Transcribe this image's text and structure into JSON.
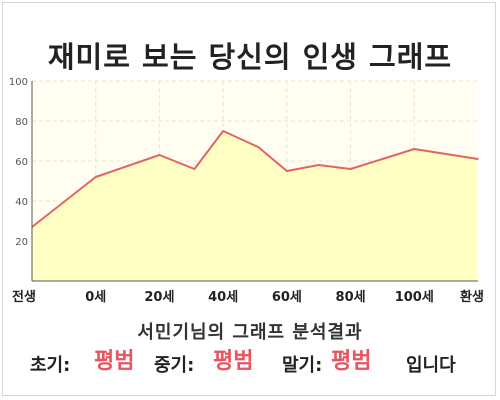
{
  "chart_data": {
    "type": "area",
    "title": "재미로 보는 당신의 인생 그래프",
    "xlabel": "",
    "ylabel": "",
    "x_tick_labels": [
      "전생",
      "0세",
      "20세",
      "40세",
      "60세",
      "80세",
      "100세",
      "환생"
    ],
    "y_ticks": [
      20,
      40,
      60,
      80,
      100
    ],
    "ylim": [
      0,
      100
    ],
    "grid": true,
    "legend": "none",
    "series": [
      {
        "points": [
          {
            "x": 0,
            "y": 27
          },
          {
            "x": 1,
            "y": 52
          },
          {
            "x": 2,
            "y": 63
          },
          {
            "x": 2.55,
            "y": 56
          },
          {
            "x": 3,
            "y": 75
          },
          {
            "x": 3.55,
            "y": 67
          },
          {
            "x": 4,
            "y": 55
          },
          {
            "x": 4.5,
            "y": 58
          },
          {
            "x": 5,
            "y": 56
          },
          {
            "x": 6,
            "y": 66
          },
          {
            "x": 7,
            "y": 61
          }
        ]
      }
    ],
    "colors": {
      "line": "#e26464",
      "fill": "#ffffc4",
      "plot_bg": "#fffef0",
      "grid": "#e6e6d2"
    }
  },
  "result": {
    "heading": "서민기님의 그래프 분석결과",
    "early_label": "초기:",
    "early_value": "평범",
    "middle_label": "중기:",
    "middle_value": "평범",
    "late_label": "말기:",
    "late_value": "평범",
    "ending": "입니다"
  }
}
